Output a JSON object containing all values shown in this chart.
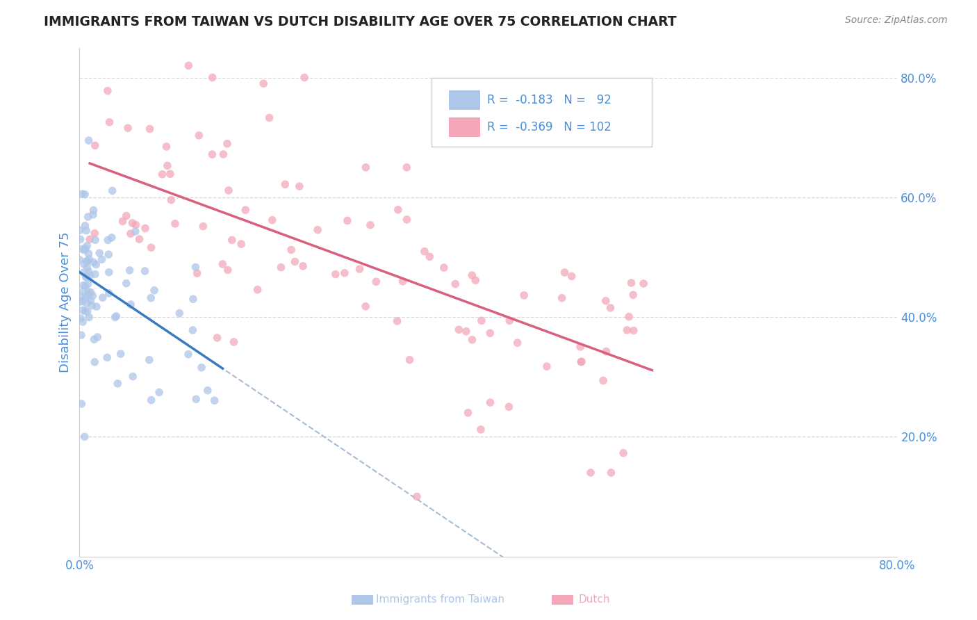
{
  "title": "IMMIGRANTS FROM TAIWAN VS DUTCH DISABILITY AGE OVER 75 CORRELATION CHART",
  "source": "Source: ZipAtlas.com",
  "ylabel": "Disability Age Over 75",
  "legend_entries": [
    {
      "label": "Immigrants from Taiwan",
      "color": "#aec6e8",
      "R": "-0.183",
      "N": "92"
    },
    {
      "label": "Dutch",
      "color": "#f4a7b9",
      "R": "-0.369",
      "N": "102"
    }
  ],
  "taiwan_color": "#aec6e8",
  "dutch_color": "#f4a7b9",
  "taiwan_line_color": "#3a7abf",
  "dutch_line_color": "#d95f7f",
  "dash_line_color": "#9ab5d0",
  "background_color": "#ffffff",
  "grid_color": "#d8d8d8",
  "title_color": "#222222",
  "axis_label_color": "#4a90d9",
  "xlim": [
    0.0,
    0.8
  ],
  "ylim": [
    0.0,
    0.85
  ],
  "taiwan_seed": 7,
  "dutch_seed": 13
}
